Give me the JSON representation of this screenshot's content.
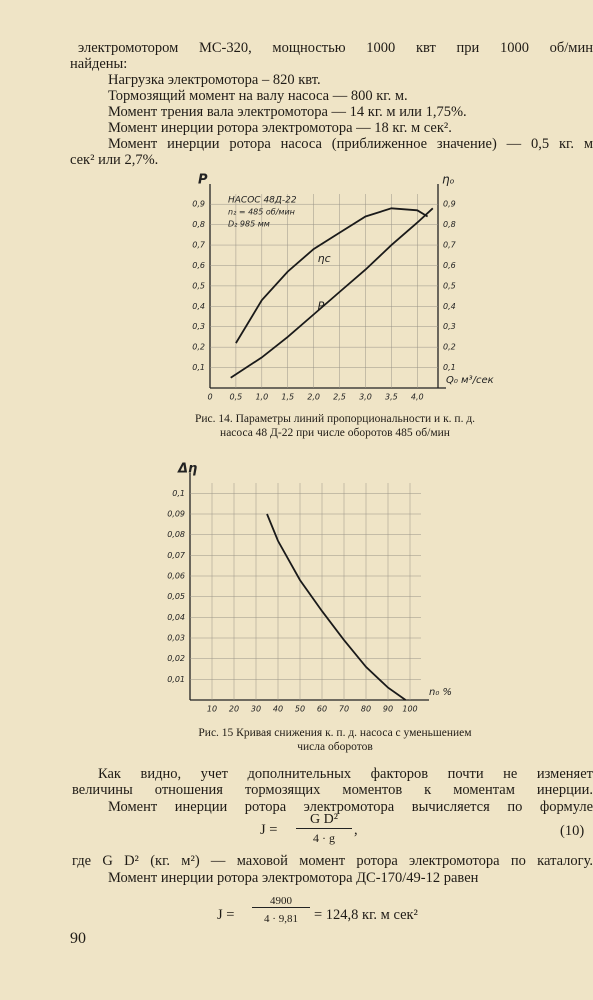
{
  "lines_top": [
    "электромотором МС-320, мощностью 1000 квт при 1000 об/мин",
    "найдены:",
    "Нагрузка электромотора – 820 квт.",
    "Тормозящий момент на валу насоса — 800 кг. м.",
    "Момент трения вала электромотора — 14 кг. м или 1,75%.",
    "Момент инерции ротора электромотора — 18 кг. м сек².",
    "Момент инерции ротора насоса (приближенное значение) — 0,5 кг. м",
    "сек² или 2,7%."
  ],
  "captions": [
    "Рис. 14. Параметры линий пропорциональности и к. п. д. насоса 48 Д-22 при числе оборотов 485 об/мин",
    "Рис. 15 Кривая снижения к. п. д. насоса с уменьшением числа оборотов"
  ],
  "lines_bottom": [
    "Как видно, учет дополнительных факторов почти не изменяет",
    "величины отношения тормозящих моментов к моментам инерции.",
    "Момент инерции ротора электромотора вычисляется по формуле"
  ],
  "formula_1": {
    "lhs": "J =",
    "numerator": "G D²",
    "denominator": "4 · g",
    "tail": ",",
    "number": "(10)"
  },
  "lines_after": [
    "где G D² (кг. м²) — маховой момент ротора электромотора по каталогу.",
    "Момент инерции ротора электромотора ДС-170/49-12 равен"
  ],
  "formula_2": {
    "lhs": "J =",
    "numerator": "4900",
    "denominator": "4 · 9,81",
    "rhs": "= 124,8 кг. м сек²"
  },
  "page_number": "90",
  "chart_data": [
    {
      "type": "line",
      "y_label": "P",
      "y2_label": "ηₒ",
      "x_label": "Q₀ м³/сек",
      "annotations": [
        "НАСОС 48Д-22",
        "n₂ = 485 об/мин",
        "D₂ 985 мм"
      ],
      "grid": true,
      "xlim": [
        0,
        4.4
      ],
      "ylim": [
        0,
        0.95
      ],
      "y2lim": [
        0,
        0.95
      ],
      "xticks": [
        0,
        {
          "value": 0.5,
          "label": "0,5"
        },
        {
          "value": 1,
          "label": "1,0"
        },
        {
          "value": 1.5,
          "label": "1,5"
        },
        {
          "value": 2,
          "label": "2,0"
        },
        {
          "value": 2.5,
          "label": "2,5"
        },
        {
          "value": 3,
          "label": "3,0"
        },
        {
          "value": 3.5,
          "label": "3,5"
        },
        {
          "value": 4,
          "label": "4,0"
        }
      ],
      "yticks": [
        {
          "value": 0.1,
          "label": "0,1"
        },
        {
          "value": 0.2,
          "label": "0,2"
        },
        {
          "value": 0.3,
          "label": "0,3"
        },
        {
          "value": 0.4,
          "label": "0,4"
        },
        {
          "value": 0.5,
          "label": "0,5"
        },
        {
          "value": 0.6,
          "label": "0,6"
        },
        {
          "value": 0.7,
          "label": "0,7"
        },
        {
          "value": 0.8,
          "label": "0,8"
        },
        {
          "value": 0.9,
          "label": "0,9"
        }
      ],
      "y2ticks": [
        {
          "value": 0.1,
          "label": "0,1"
        },
        {
          "value": 0.2,
          "label": "0,2"
        },
        {
          "value": 0.3,
          "label": "0,3"
        },
        {
          "value": 0.4,
          "label": "0,4"
        },
        {
          "value": 0.5,
          "label": "0,5"
        },
        {
          "value": 0.6,
          "label": "0,6"
        },
        {
          "value": 0.7,
          "label": "0,7"
        },
        {
          "value": 0.8,
          "label": "0,8"
        },
        {
          "value": 0.9,
          "label": "0,9"
        }
      ],
      "series": [
        {
          "name": "ηc",
          "color": "#1a1a1a",
          "axis": "y2",
          "x": [
            0.5,
            1.0,
            1.5,
            2.0,
            2.5,
            3.0,
            3.5,
            4.0,
            4.2
          ],
          "values": [
            0.22,
            0.43,
            0.57,
            0.68,
            0.76,
            0.84,
            0.88,
            0.87,
            0.84
          ]
        },
        {
          "name": "P",
          "color": "#1a1a1a",
          "x": [
            0.4,
            1.0,
            1.5,
            2.0,
            2.5,
            3.0,
            3.5,
            4.0,
            4.3
          ],
          "values": [
            0.05,
            0.15,
            0.25,
            0.36,
            0.47,
            0.58,
            0.7,
            0.81,
            0.88
          ]
        }
      ]
    },
    {
      "type": "line",
      "y_label": "Δη",
      "x_label": "n₀ %",
      "grid": true,
      "xlim": [
        0,
        105
      ],
      "ylim": [
        0,
        0.105
      ],
      "xticks": [
        10,
        20,
        30,
        40,
        50,
        60,
        70,
        80,
        90,
        100
      ],
      "yticks": [
        {
          "value": 0.01,
          "label": "0,01"
        },
        {
          "value": 0.02,
          "label": "0,02"
        },
        {
          "value": 0.03,
          "label": "0,03"
        },
        {
          "value": 0.04,
          "label": "0,04"
        },
        {
          "value": 0.05,
          "label": "0,05"
        },
        {
          "value": 0.06,
          "label": "0,06"
        },
        {
          "value": 0.07,
          "label": "0,07"
        },
        {
          "value": 0.08,
          "label": "0,08"
        },
        {
          "value": 0.09,
          "label": "0,09"
        },
        {
          "value": 0.1,
          "label": "0,1"
        }
      ],
      "series": [
        {
          "color": "#1a1a1a",
          "x": [
            35,
            40,
            50,
            60,
            70,
            80,
            90,
            98
          ],
          "values": [
            0.09,
            0.077,
            0.058,
            0.043,
            0.029,
            0.016,
            0.006,
            0
          ]
        }
      ]
    }
  ]
}
